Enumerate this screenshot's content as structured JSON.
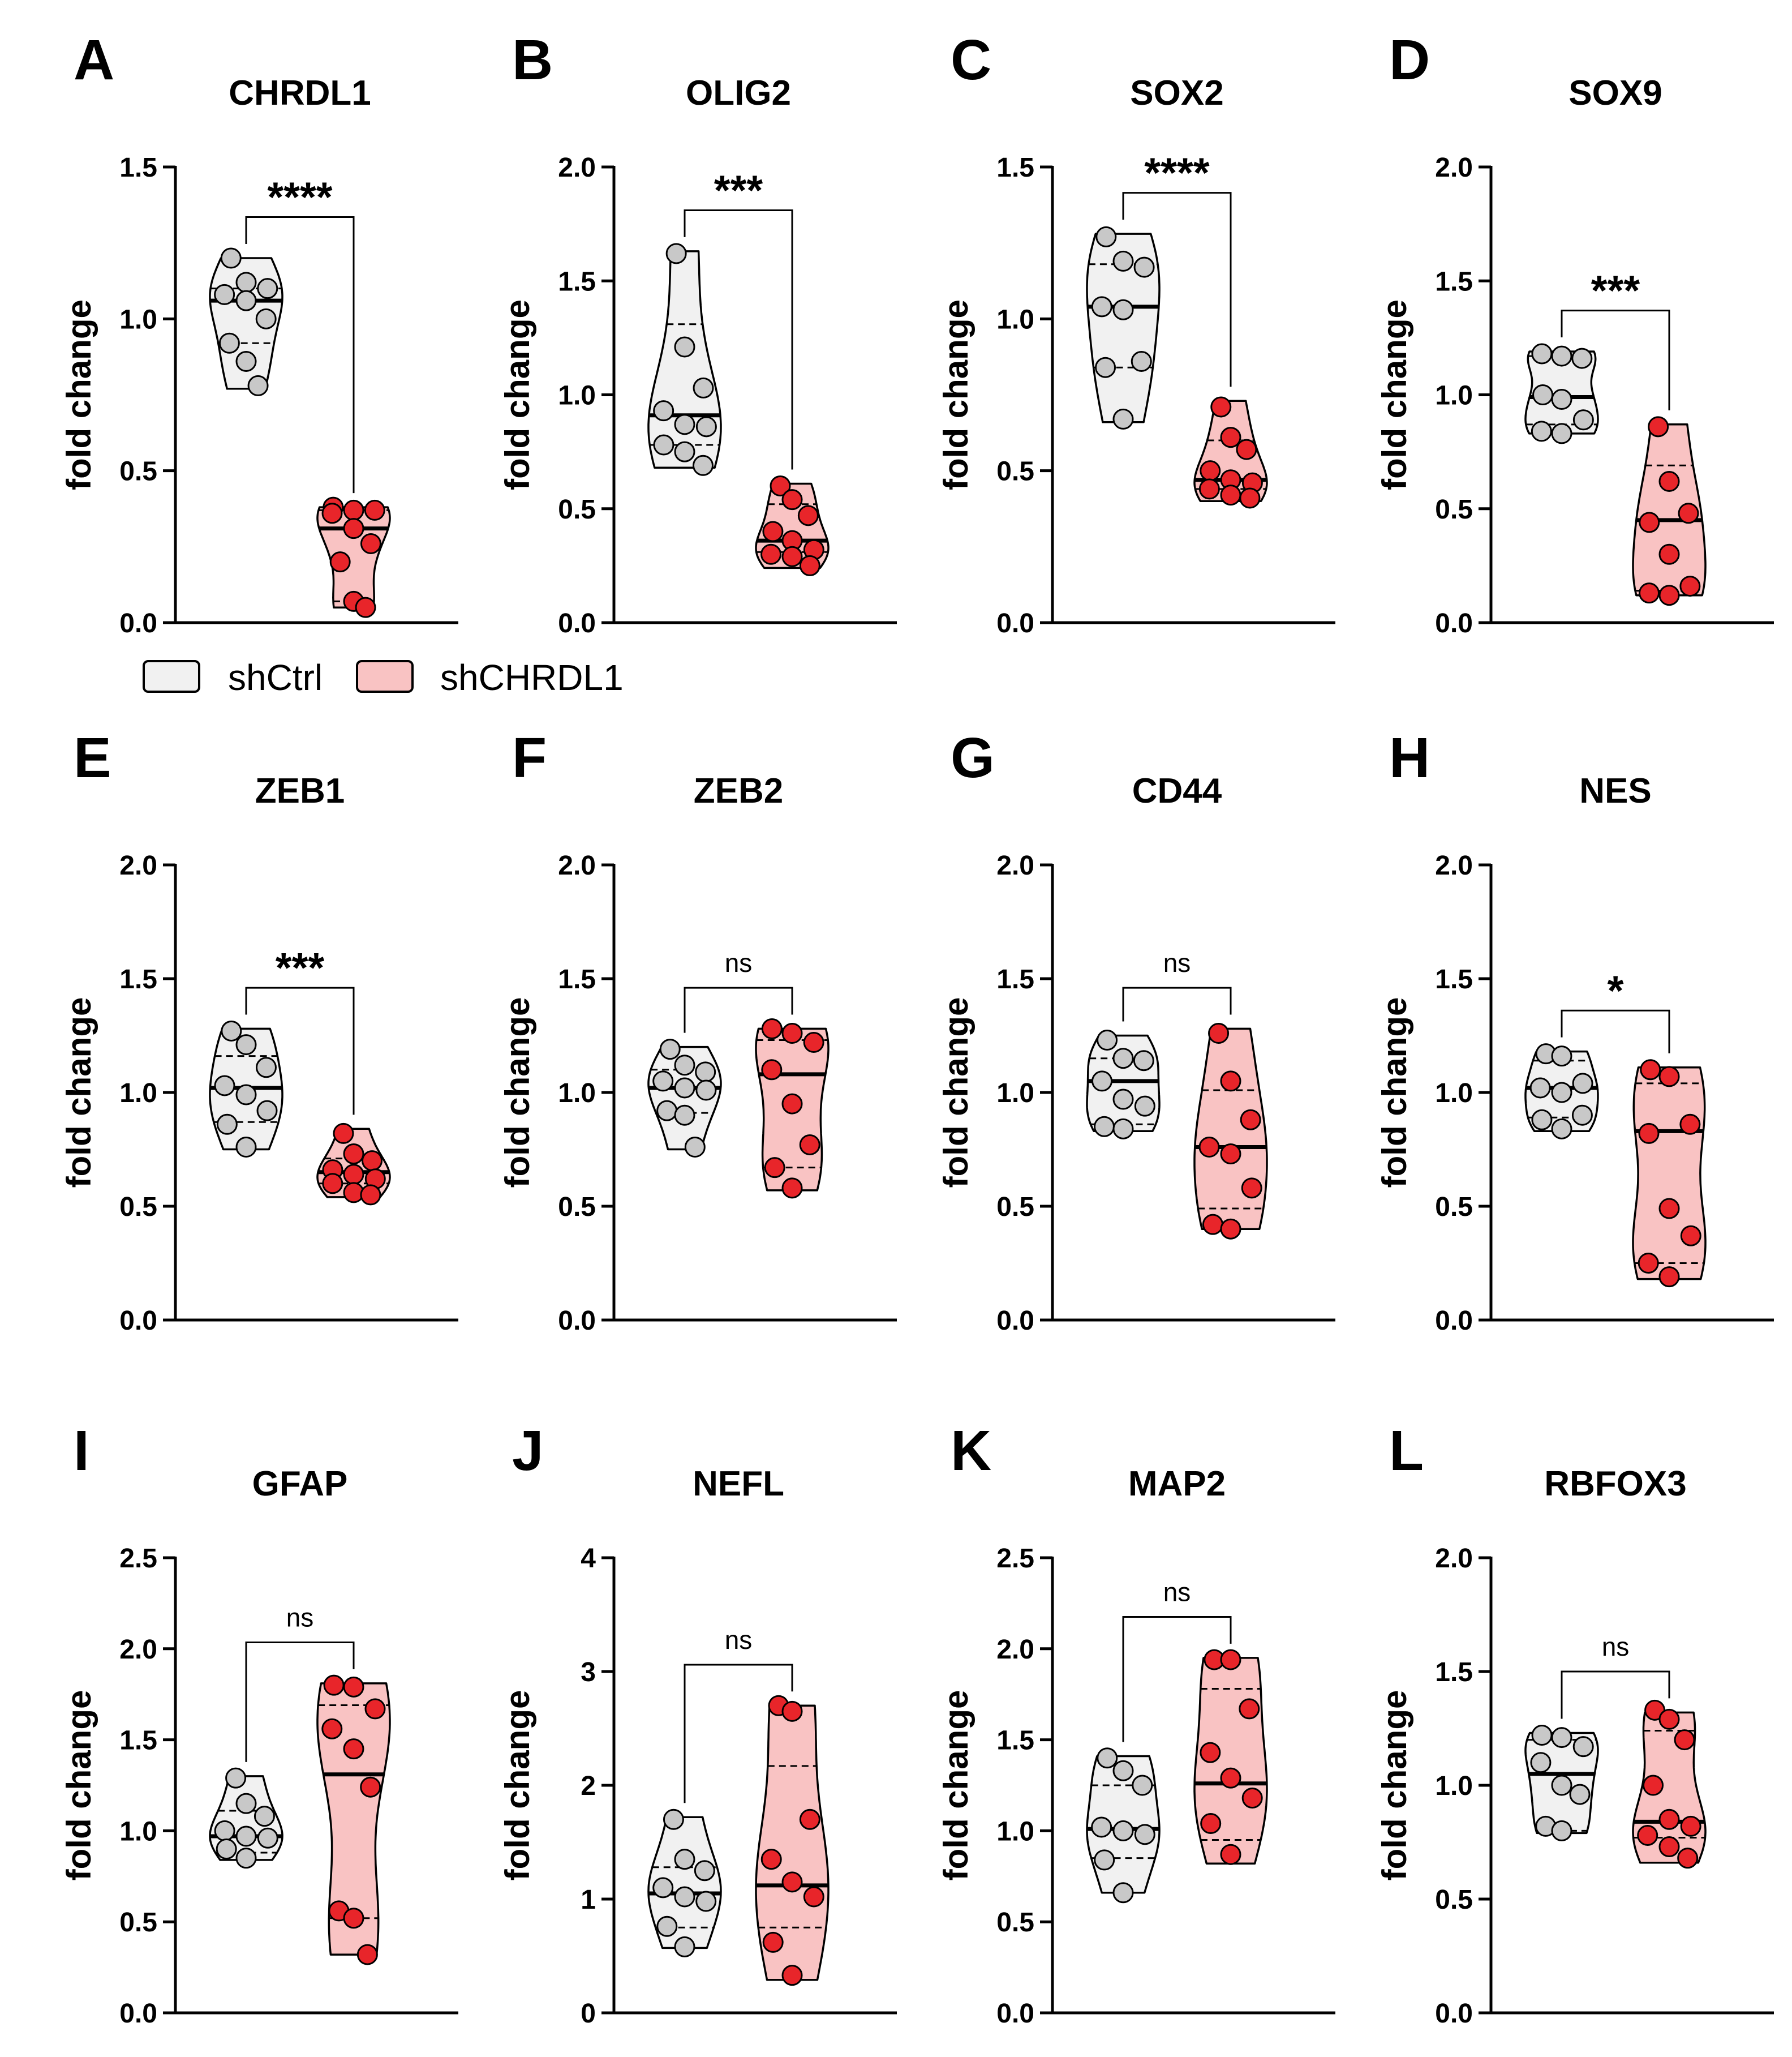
{
  "legend": {
    "items": [
      {
        "label": "shCtrl",
        "fill": "#f1f1f1"
      },
      {
        "label": "shCHRDL1",
        "fill": "#f9c3c3"
      }
    ]
  },
  "colors": {
    "ctrl_fill": "#f1f1f1",
    "ctrl_point": "#c8c8c8",
    "kd_fill": "#f9c3c3",
    "kd_point": "#e8252a",
    "axis": "#000000"
  },
  "chart_data": [
    {
      "letter": "A",
      "type": "violin",
      "title": "CHRDL1",
      "ylabel": "fold change",
      "ylim": [
        0,
        1.5
      ],
      "yticks": [
        "0.0",
        "0.5",
        "1.0",
        "1.5"
      ],
      "significance": "****",
      "series": [
        {
          "name": "shCtrl",
          "median": 1.06,
          "q1": 0.92,
          "q3": 1.1,
          "min": 0.77,
          "max": 1.2,
          "points": [
            1.2,
            1.12,
            1.1,
            1.08,
            1.06,
            1.0,
            0.92,
            0.86,
            0.78
          ]
        },
        {
          "name": "shCHRDL1",
          "median": 0.31,
          "q1": 0.07,
          "q3": 0.37,
          "min": 0.05,
          "max": 0.38,
          "points": [
            0.38,
            0.37,
            0.37,
            0.36,
            0.31,
            0.26,
            0.2,
            0.07,
            0.05
          ]
        }
      ]
    },
    {
      "letter": "B",
      "type": "violin",
      "title": "OLIG2",
      "ylabel": "fold change",
      "ylim": [
        0,
        2.0
      ],
      "yticks": [
        "0.0",
        "0.5",
        "1.0",
        "1.5",
        "2.0"
      ],
      "significance": "***",
      "series": [
        {
          "name": "shCtrl",
          "median": 0.91,
          "q1": 0.78,
          "q3": 1.31,
          "min": 0.68,
          "max": 1.63,
          "points": [
            1.62,
            1.21,
            1.03,
            0.93,
            0.87,
            0.86,
            0.78,
            0.75,
            0.69
          ]
        },
        {
          "name": "shCHRDL1",
          "median": 0.36,
          "q1": 0.31,
          "q3": 0.52,
          "min": 0.24,
          "max": 0.61,
          "points": [
            0.6,
            0.54,
            0.47,
            0.4,
            0.36,
            0.32,
            0.3,
            0.29,
            0.25
          ]
        }
      ]
    },
    {
      "letter": "C",
      "type": "violin",
      "title": "SOX2",
      "ylabel": "fold change",
      "ylim": [
        0,
        1.5
      ],
      "yticks": [
        "0.0",
        "0.5",
        "1.0",
        "1.5"
      ],
      "significance": "****",
      "series": [
        {
          "name": "shCtrl",
          "median": 1.04,
          "q1": 0.84,
          "q3": 1.18,
          "min": 0.66,
          "max": 1.28,
          "points": [
            1.27,
            1.19,
            1.17,
            1.04,
            1.03,
            0.86,
            0.84,
            0.67
          ]
        },
        {
          "name": "shCHRDL1",
          "median": 0.47,
          "q1": 0.44,
          "q3": 0.6,
          "min": 0.4,
          "max": 0.73,
          "points": [
            0.71,
            0.61,
            0.57,
            0.5,
            0.47,
            0.46,
            0.44,
            0.42,
            0.41
          ]
        }
      ]
    },
    {
      "letter": "D",
      "type": "violin",
      "title": "SOX9",
      "ylabel": "fold change",
      "ylim": [
        0,
        2.0
      ],
      "yticks": [
        "0.0",
        "0.5",
        "1.0",
        "1.5",
        "2.0"
      ],
      "significance": "***",
      "series": [
        {
          "name": "shCtrl",
          "median": 0.99,
          "q1": 0.87,
          "q3": 1.17,
          "min": 0.83,
          "max": 1.19,
          "points": [
            1.18,
            1.17,
            1.16,
            1.0,
            0.98,
            0.89,
            0.84,
            0.83
          ]
        },
        {
          "name": "shCHRDL1",
          "median": 0.45,
          "q1": 0.14,
          "q3": 0.69,
          "min": 0.12,
          "max": 0.87,
          "points": [
            0.86,
            0.62,
            0.48,
            0.44,
            0.3,
            0.16,
            0.13,
            0.12
          ]
        }
      ]
    },
    {
      "letter": "E",
      "type": "violin",
      "title": "ZEB1",
      "ylabel": "fold change",
      "ylim": [
        0,
        2.0
      ],
      "yticks": [
        "0.0",
        "0.5",
        "1.0",
        "1.5",
        "2.0"
      ],
      "significance": "***",
      "series": [
        {
          "name": "shCtrl",
          "median": 1.02,
          "q1": 0.87,
          "q3": 1.16,
          "min": 0.75,
          "max": 1.28,
          "points": [
            1.27,
            1.21,
            1.11,
            1.03,
            0.99,
            0.92,
            0.86,
            0.76
          ]
        },
        {
          "name": "shCHRDL1",
          "median": 0.65,
          "q1": 0.6,
          "q3": 0.71,
          "min": 0.54,
          "max": 0.84,
          "points": [
            0.82,
            0.73,
            0.7,
            0.66,
            0.64,
            0.62,
            0.6,
            0.56,
            0.55
          ]
        }
      ]
    },
    {
      "letter": "F",
      "type": "violin",
      "title": "ZEB2",
      "ylabel": "fold change",
      "ylim": [
        0,
        2.0
      ],
      "yticks": [
        "0.0",
        "0.5",
        "1.0",
        "1.5",
        "2.0"
      ],
      "significance": "ns",
      "series": [
        {
          "name": "shCtrl",
          "median": 1.02,
          "q1": 0.91,
          "q3": 1.1,
          "min": 0.75,
          "max": 1.2,
          "points": [
            1.19,
            1.12,
            1.09,
            1.05,
            1.02,
            1.01,
            0.92,
            0.9,
            0.76
          ]
        },
        {
          "name": "shCHRDL1",
          "median": 1.08,
          "q1": 0.67,
          "q3": 1.23,
          "min": 0.57,
          "max": 1.28,
          "points": [
            1.28,
            1.26,
            1.22,
            1.1,
            0.95,
            0.77,
            0.67,
            0.58
          ]
        }
      ]
    },
    {
      "letter": "G",
      "type": "violin",
      "title": "CD44",
      "ylabel": "fold change",
      "ylim": [
        0,
        2.0
      ],
      "yticks": [
        "0.0",
        "0.5",
        "1.0",
        "1.5",
        "2.0"
      ],
      "significance": "ns",
      "series": [
        {
          "name": "shCtrl",
          "median": 1.05,
          "q1": 0.86,
          "q3": 1.15,
          "min": 0.83,
          "max": 1.25,
          "points": [
            1.23,
            1.15,
            1.14,
            1.05,
            0.97,
            0.94,
            0.85,
            0.84
          ]
        },
        {
          "name": "shCHRDL1",
          "median": 0.76,
          "q1": 0.49,
          "q3": 1.01,
          "min": 0.4,
          "max": 1.28,
          "points": [
            1.26,
            1.05,
            0.88,
            0.76,
            0.73,
            0.58,
            0.42,
            0.4
          ]
        }
      ]
    },
    {
      "letter": "H",
      "type": "violin",
      "title": "NES",
      "ylabel": "fold change",
      "ylim": [
        0,
        2.0
      ],
      "yticks": [
        "0.0",
        "0.5",
        "1.0",
        "1.5",
        "2.0"
      ],
      "significance": "*",
      "series": [
        {
          "name": "shCtrl",
          "median": 1.02,
          "q1": 0.89,
          "q3": 1.14,
          "min": 0.83,
          "max": 1.18,
          "points": [
            1.17,
            1.16,
            1.04,
            1.02,
            1.0,
            0.9,
            0.88,
            0.84
          ]
        },
        {
          "name": "shCHRDL1",
          "median": 0.83,
          "q1": 0.25,
          "q3": 1.04,
          "min": 0.18,
          "max": 1.11,
          "points": [
            1.1,
            1.07,
            0.86,
            0.82,
            0.49,
            0.37,
            0.25,
            0.19
          ]
        }
      ]
    },
    {
      "letter": "I",
      "type": "violin",
      "title": "GFAP",
      "ylabel": "fold change",
      "ylim": [
        0,
        2.5
      ],
      "yticks": [
        "0.0",
        "0.5",
        "1.0",
        "1.5",
        "2.0",
        "2.5"
      ],
      "significance": "ns",
      "series": [
        {
          "name": "shCtrl",
          "median": 0.97,
          "q1": 0.88,
          "q3": 1.11,
          "min": 0.84,
          "max": 1.3,
          "points": [
            1.29,
            1.15,
            1.08,
            1.0,
            0.97,
            0.96,
            0.9,
            0.85
          ]
        },
        {
          "name": "shCHRDL1",
          "median": 1.31,
          "q1": 0.52,
          "q3": 1.69,
          "min": 0.32,
          "max": 1.81,
          "points": [
            1.8,
            1.79,
            1.67,
            1.56,
            1.45,
            1.24,
            0.56,
            0.52,
            0.32
          ]
        }
      ]
    },
    {
      "letter": "J",
      "type": "violin",
      "title": "NEFL",
      "ylabel": "fold change",
      "ylim": [
        0,
        4
      ],
      "yticks": [
        "0",
        "1",
        "2",
        "3",
        "4"
      ],
      "significance": "ns",
      "series": [
        {
          "name": "shCtrl",
          "median": 1.05,
          "q1": 0.75,
          "q3": 1.28,
          "min": 0.57,
          "max": 1.72,
          "points": [
            1.7,
            1.35,
            1.25,
            1.1,
            1.02,
            0.98,
            0.76,
            0.58
          ]
        },
        {
          "name": "shCHRDL1",
          "median": 1.12,
          "q1": 0.75,
          "q3": 2.17,
          "min": 0.29,
          "max": 2.7,
          "points": [
            2.7,
            2.65,
            1.7,
            1.35,
            1.15,
            1.02,
            0.62,
            0.33
          ]
        }
      ]
    },
    {
      "letter": "K",
      "type": "violin",
      "title": "MAP2",
      "ylabel": "fold change",
      "ylim": [
        0,
        2.5
      ],
      "yticks": [
        "0.0",
        "0.5",
        "1.0",
        "1.5",
        "2.0",
        "2.5"
      ],
      "significance": "ns",
      "series": [
        {
          "name": "shCtrl",
          "median": 1.01,
          "q1": 0.85,
          "q3": 1.25,
          "min": 0.66,
          "max": 1.41,
          "points": [
            1.4,
            1.33,
            1.25,
            1.02,
            1.0,
            0.98,
            0.84,
            0.66
          ]
        },
        {
          "name": "shCHRDL1",
          "median": 1.26,
          "q1": 0.95,
          "q3": 1.78,
          "min": 0.82,
          "max": 1.95,
          "points": [
            1.94,
            1.94,
            1.67,
            1.43,
            1.29,
            1.18,
            1.04,
            0.87
          ]
        }
      ]
    },
    {
      "letter": "L",
      "type": "violin",
      "title": "RBFOX3",
      "ylabel": "fold change",
      "ylim": [
        0,
        2.0
      ],
      "yticks": [
        "0.0",
        "0.5",
        "1.0",
        "1.5",
        "2.0"
      ],
      "significance": "ns",
      "series": [
        {
          "name": "shCtrl",
          "median": 1.05,
          "q1": 0.8,
          "q3": 1.2,
          "min": 0.79,
          "max": 1.23,
          "points": [
            1.22,
            1.21,
            1.17,
            1.1,
            1.0,
            0.96,
            0.82,
            0.8
          ]
        },
        {
          "name": "shCHRDL1",
          "median": 0.84,
          "q1": 0.77,
          "q3": 1.24,
          "min": 0.66,
          "max": 1.32,
          "points": [
            1.33,
            1.29,
            1.2,
            1.0,
            0.85,
            0.82,
            0.78,
            0.73,
            0.68
          ]
        }
      ]
    }
  ]
}
